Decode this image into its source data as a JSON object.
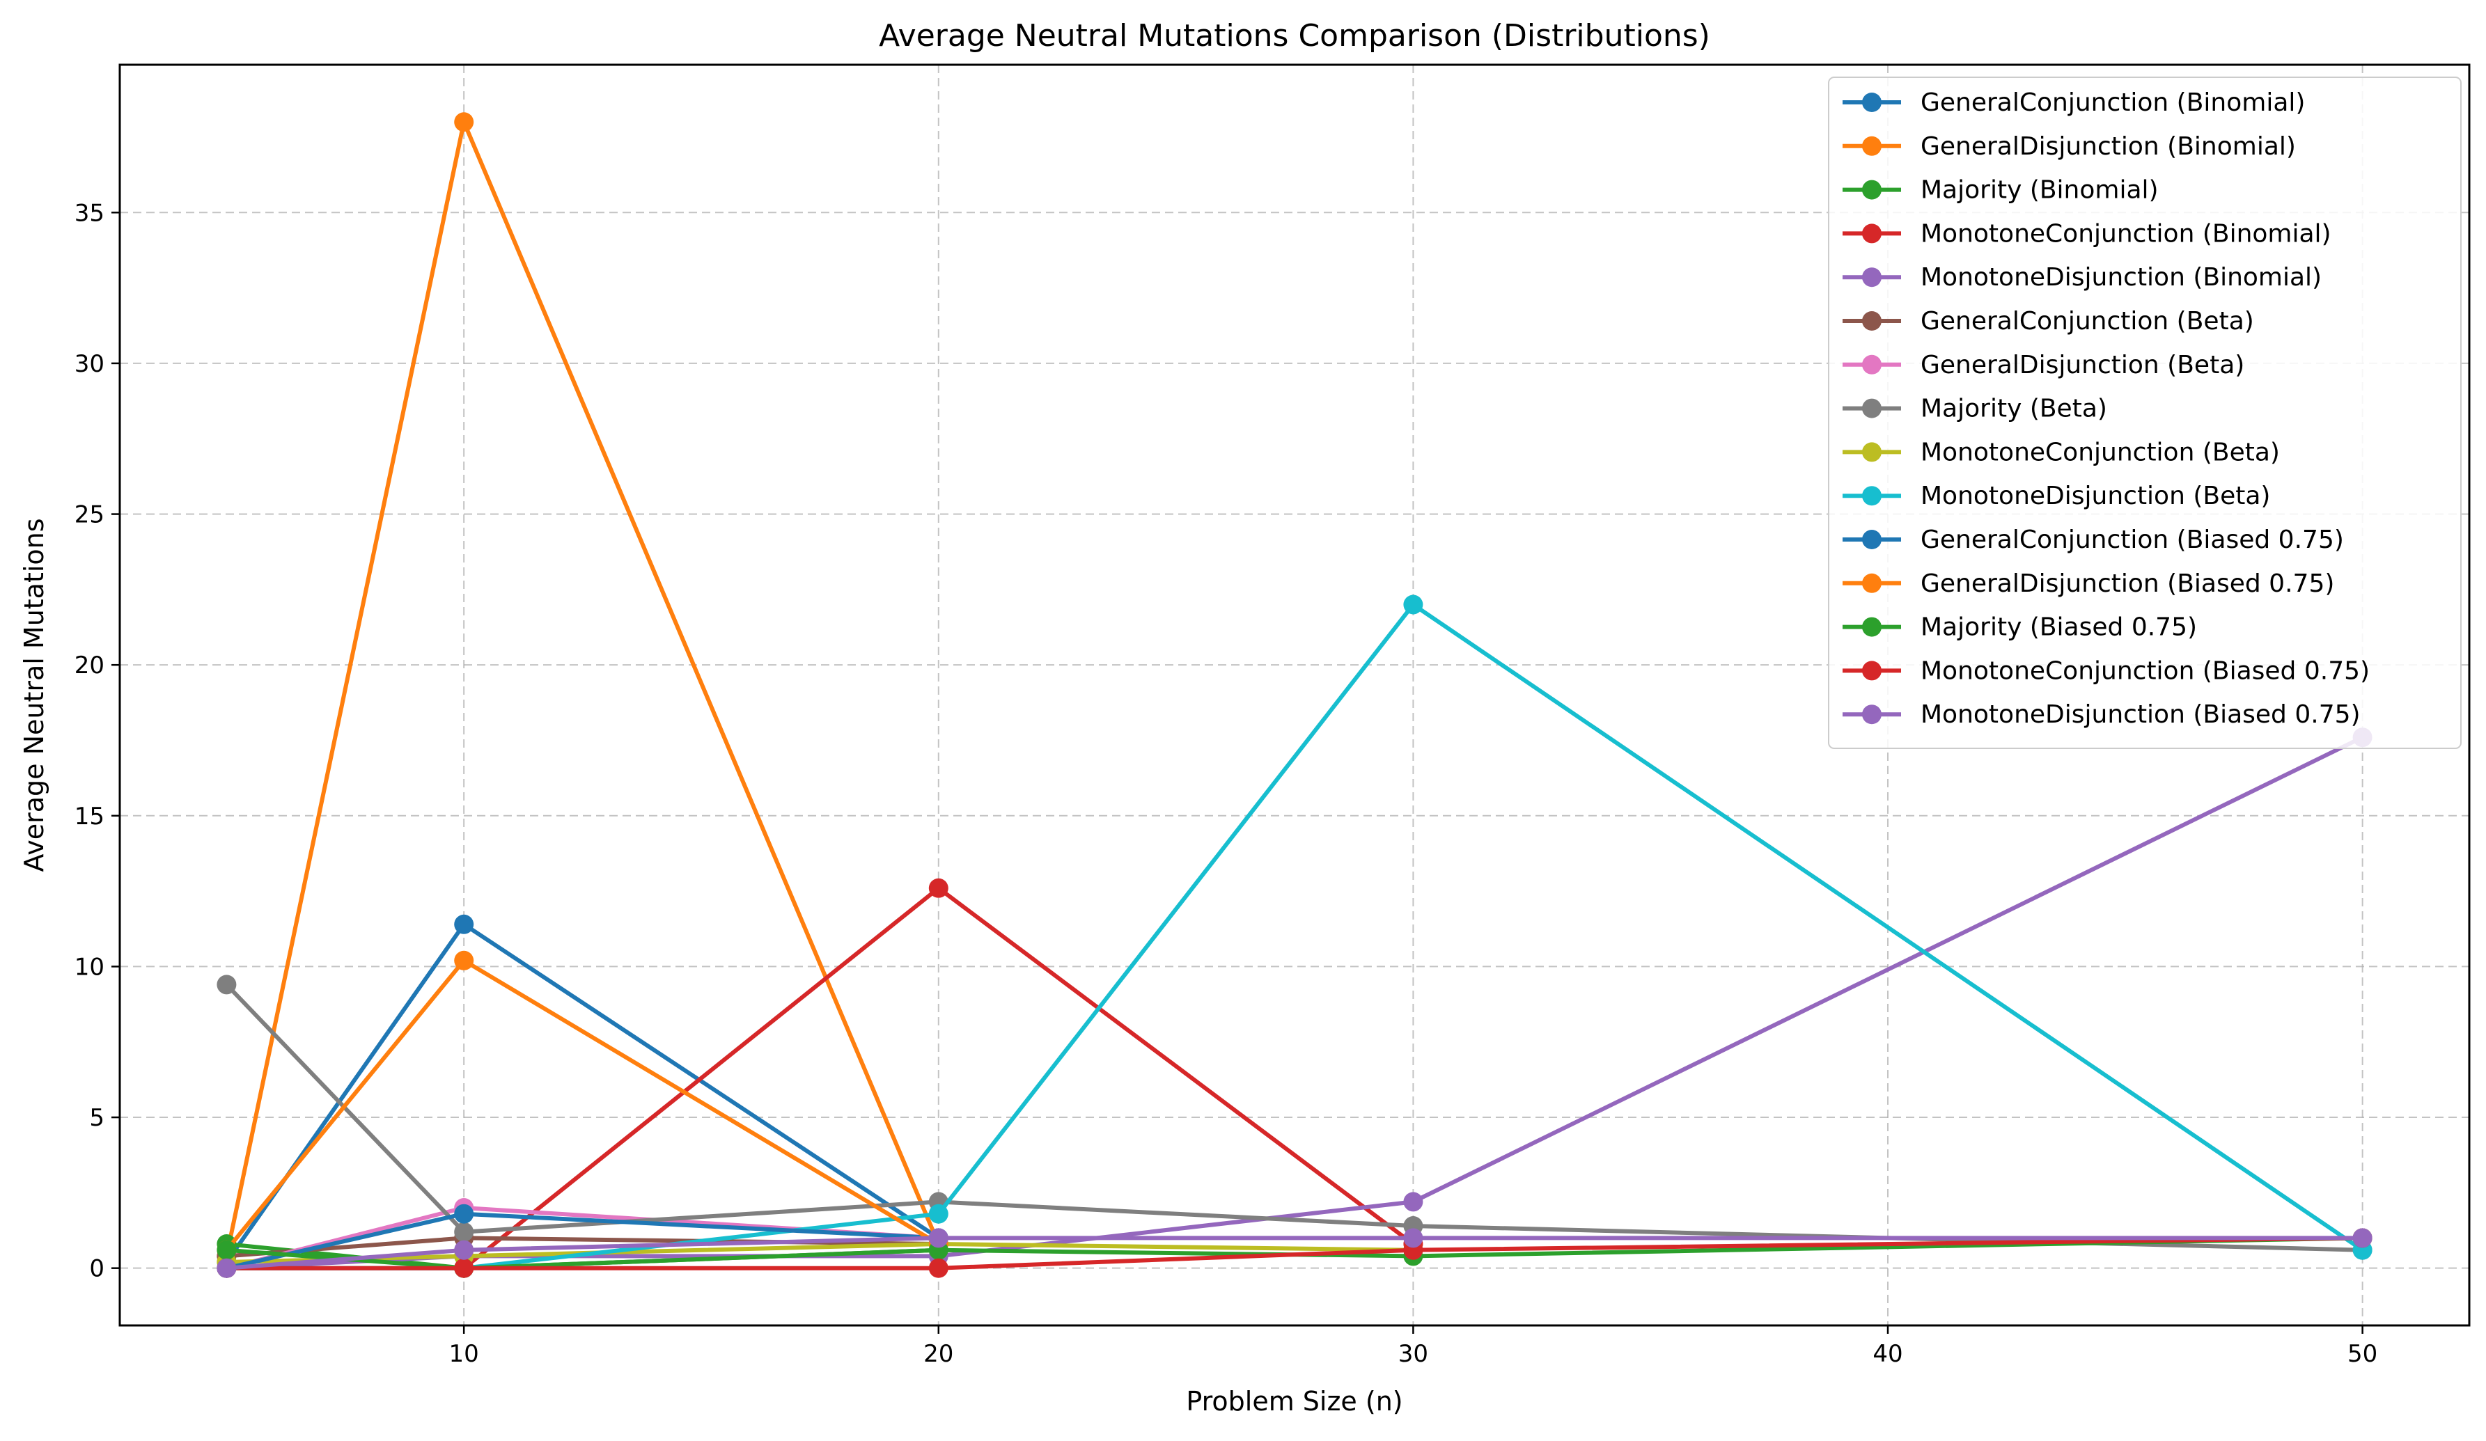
{
  "chart_data": {
    "type": "line",
    "title": "Average Neutral Mutations Comparison (Distributions)",
    "xlabel": "Problem Size (n)",
    "ylabel": "Average Neutral Mutations",
    "xlim": [
      2.75,
      52.25
    ],
    "ylim": [
      -1.9,
      39.9
    ],
    "xticks": [
      10,
      20,
      30,
      40,
      50
    ],
    "yticks": [
      0,
      5,
      10,
      15,
      20,
      25,
      30,
      35
    ],
    "grid": true,
    "grid_style": "dashed",
    "legend_position": "upper right",
    "marker": "circle",
    "x": [
      5,
      10,
      20,
      30,
      50
    ],
    "series": [
      {
        "name": "GeneralConjunction (Binomial)",
        "color": "#1f77b4",
        "x": [
          5,
          10,
          20
        ],
        "values": [
          0.2,
          11.4,
          1.0
        ]
      },
      {
        "name": "GeneralDisjunction (Binomial)",
        "color": "#ff7f0e",
        "x": [
          5,
          10,
          20
        ],
        "values": [
          0.4,
          38.0,
          0.8
        ]
      },
      {
        "name": "Majority (Binomial)",
        "color": "#2ca02c",
        "x": [
          5,
          10,
          20
        ],
        "values": [
          0.8,
          0.0,
          0.6
        ]
      },
      {
        "name": "MonotoneConjunction (Binomial)",
        "color": "#d62728",
        "x": [
          5,
          10,
          20,
          30
        ],
        "values": [
          0.0,
          0.0,
          12.6,
          0.8
        ]
      },
      {
        "name": "MonotoneDisjunction (Binomial)",
        "color": "#9467bd",
        "x": [
          5,
          10,
          20,
          30,
          50
        ],
        "values": [
          0.0,
          0.4,
          0.4,
          2.2,
          17.6
        ]
      },
      {
        "name": "GeneralConjunction (Beta)",
        "color": "#8c564b",
        "x": [
          5,
          10,
          20
        ],
        "values": [
          0.4,
          1.0,
          0.8
        ]
      },
      {
        "name": "GeneralDisjunction (Beta)",
        "color": "#e377c2",
        "x": [
          5,
          10,
          20
        ],
        "values": [
          0.0,
          2.0,
          1.0
        ]
      },
      {
        "name": "Majority (Beta)",
        "color": "#7f7f7f",
        "x": [
          5,
          10,
          20,
          30,
          50
        ],
        "values": [
          9.4,
          1.2,
          2.2,
          1.4,
          0.6
        ]
      },
      {
        "name": "MonotoneConjunction (Beta)",
        "color": "#bcbd22",
        "x": [
          5,
          10,
          20,
          30
        ],
        "values": [
          0.2,
          0.4,
          0.8,
          0.6
        ]
      },
      {
        "name": "MonotoneDisjunction (Beta)",
        "color": "#17becf",
        "x": [
          5,
          10,
          20,
          30,
          50
        ],
        "values": [
          0.0,
          0.0,
          1.8,
          22.0,
          0.6
        ]
      },
      {
        "name": "GeneralConjunction (Biased 0.75)",
        "color": "#1f77b4",
        "x": [
          5,
          10,
          20
        ],
        "values": [
          0.0,
          1.8,
          1.0
        ]
      },
      {
        "name": "GeneralDisjunction (Biased 0.75)",
        "color": "#ff7f0e",
        "x": [
          5,
          10,
          20
        ],
        "values": [
          0.6,
          10.2,
          0.8
        ]
      },
      {
        "name": "Majority (Biased 0.75)",
        "color": "#2ca02c",
        "x": [
          5,
          10,
          20,
          30,
          50
        ],
        "values": [
          0.6,
          0.0,
          0.6,
          0.4,
          1.0
        ]
      },
      {
        "name": "MonotoneConjunction (Biased 0.75)",
        "color": "#d62728",
        "x": [
          5,
          10,
          20,
          30,
          50
        ],
        "values": [
          0.0,
          0.0,
          0.0,
          0.6,
          1.0
        ]
      },
      {
        "name": "MonotoneDisjunction (Biased 0.75)",
        "color": "#9467bd",
        "x": [
          5,
          10,
          20,
          30,
          50
        ],
        "values": [
          0.0,
          0.6,
          1.0,
          1.0,
          1.0
        ]
      }
    ]
  }
}
